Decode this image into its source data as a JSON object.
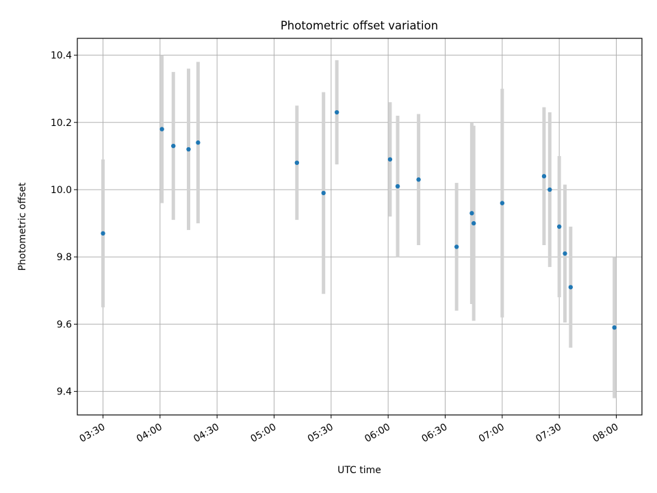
{
  "chart_data": {
    "type": "scatter",
    "title": "Photometric offset variation",
    "xlabel": "UTC time",
    "ylabel": "Photometric offset",
    "x_ticks": [
      "03:30",
      "04:00",
      "04:30",
      "05:00",
      "05:30",
      "06:00",
      "06:30",
      "07:00",
      "07:30",
      "08:00"
    ],
    "y_ticks": [
      "9.4",
      "9.6",
      "9.8",
      "10.0",
      "10.2",
      "10.4"
    ],
    "xlim": [
      "03:16:30",
      "08:13:30"
    ],
    "ylim": [
      9.33,
      10.45
    ],
    "grid": true,
    "colors": {
      "points": "#1f77b4",
      "errorbars": "#d3d3d3",
      "grid": "#b0b0b0"
    },
    "points": [
      {
        "time": "03:30",
        "value": 9.87,
        "err": 0.22
      },
      {
        "time": "04:01",
        "value": 10.18,
        "err": 0.22
      },
      {
        "time": "04:07",
        "value": 10.13,
        "err": 0.22
      },
      {
        "time": "04:15",
        "value": 10.12,
        "err": 0.24
      },
      {
        "time": "04:20",
        "value": 10.14,
        "err": 0.24
      },
      {
        "time": "05:12",
        "value": 10.08,
        "err": 0.17
      },
      {
        "time": "05:26",
        "value": 9.99,
        "err": 0.3
      },
      {
        "time": "05:33",
        "value": 10.23,
        "err": 0.155
      },
      {
        "time": "06:01",
        "value": 10.09,
        "err": 0.17
      },
      {
        "time": "06:05",
        "value": 10.01,
        "err": 0.21
      },
      {
        "time": "06:16",
        "value": 10.03,
        "err": 0.195
      },
      {
        "time": "06:36",
        "value": 9.83,
        "err": 0.19
      },
      {
        "time": "06:44",
        "value": 9.93,
        "err": 0.27
      },
      {
        "time": "06:45",
        "value": 9.9,
        "err": 0.29
      },
      {
        "time": "07:00",
        "value": 9.96,
        "err": 0.34
      },
      {
        "time": "07:22",
        "value": 10.04,
        "err": 0.205
      },
      {
        "time": "07:25",
        "value": 10.0,
        "err": 0.23
      },
      {
        "time": "07:30",
        "value": 9.89,
        "err": 0.21
      },
      {
        "time": "07:33",
        "value": 9.81,
        "err": 0.205
      },
      {
        "time": "07:36",
        "value": 9.71,
        "err": 0.18
      },
      {
        "time": "07:59",
        "value": 9.59,
        "err": 0.21
      }
    ]
  }
}
